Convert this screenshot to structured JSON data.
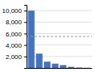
{
  "chart_data": {
    "type": "bar",
    "categories": [
      null,
      null,
      null,
      null,
      null,
      null,
      null,
      null
    ],
    "values": [
      10000,
      2500,
      1100,
      750,
      500,
      200,
      80,
      35
    ],
    "color": "#4472c4",
    "ylim": [
      0,
      11000
    ],
    "yticks": [
      {
        "value": 2000,
        "label": "2,000"
      },
      {
        "value": 4000,
        "label": "4,000"
      },
      {
        "value": 6000,
        "label": "6,000"
      },
      {
        "value": 8000,
        "label": "8,000"
      },
      {
        "value": 10000,
        "label": "10,000"
      }
    ],
    "grid": true,
    "reference_line": 5500
  }
}
